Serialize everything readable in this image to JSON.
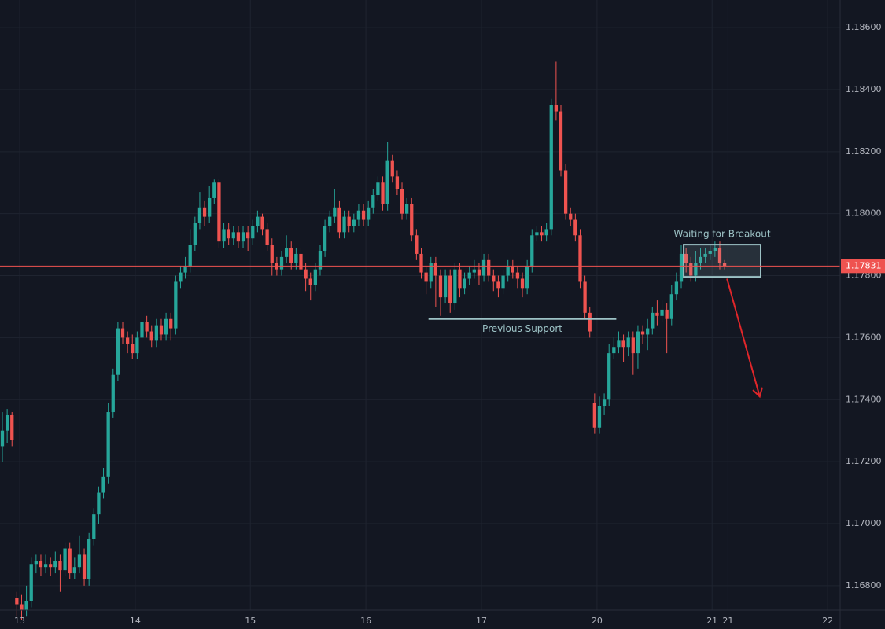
{
  "chart_data": {
    "type": "candlestick",
    "up_color": "#26a69a",
    "down_color": "#ef5350",
    "grid": true,
    "xlim": [
      -0.49,
      174.0
    ],
    "xticks": [
      {
        "value": 3.6,
        "label": "13"
      },
      {
        "value": 27.6,
        "label": "14"
      },
      {
        "value": 51.5,
        "label": "15"
      },
      {
        "value": 75.5,
        "label": "16"
      },
      {
        "value": 99.5,
        "label": "17"
      },
      {
        "value": 123.5,
        "label": "20"
      },
      {
        "value": 147.4,
        "label": "21"
      },
      {
        "value": 150.7,
        "label": "21"
      },
      {
        "value": 171.4,
        "label": "22"
      }
    ],
    "ylim": [
      1.16721,
      1.18689
    ],
    "yticks": [
      {
        "value": 1.168,
        "label": "1.16800"
      },
      {
        "value": 1.17,
        "label": "1.17000"
      },
      {
        "value": 1.172,
        "label": "1.17200"
      },
      {
        "value": 1.174,
        "label": "1.17400"
      },
      {
        "value": 1.176,
        "label": "1.17600"
      },
      {
        "value": 1.178,
        "label": "1.17800"
      },
      {
        "value": 1.18,
        "label": "1.18000"
      },
      {
        "value": 1.182,
        "label": "1.18200"
      },
      {
        "value": 1.184,
        "label": "1.18400"
      },
      {
        "value": 1.186,
        "label": "1.18600"
      }
    ],
    "price_line": {
      "value": 1.17831,
      "label": "1.17831",
      "color": "#ef5350"
    },
    "support": {
      "label": "Previous Support",
      "value": 1.1766,
      "x": [
        88.5,
        127.5
      ],
      "color": "#9dc3c6"
    },
    "box": {
      "label": "Waiting for Breakout",
      "x": [
        141.5,
        157.5
      ],
      "y": [
        1.17796,
        1.179
      ],
      "color": "#9dc3c6"
    },
    "arrow": {
      "x": [
        150.5,
        157.3
      ],
      "y": [
        1.1779,
        1.1741
      ],
      "color": "#e0262a"
    },
    "candles": [
      [
        1.1725,
        1.1736,
        1.172,
        1.173
      ],
      [
        1.173,
        1.1737,
        1.1726,
        1.1735
      ],
      [
        1.1735,
        1.1736,
        1.1725,
        1.1727
      ],
      [
        1.1676,
        1.1678,
        1.167,
        1.1674
      ],
      [
        1.1674,
        1.1677,
        1.1669,
        1.1672
      ],
      [
        1.1672,
        1.168,
        1.167,
        1.1675
      ],
      [
        1.1675,
        1.1689,
        1.1673,
        1.1687
      ],
      [
        1.1687,
        1.169,
        1.1684,
        1.1688
      ],
      [
        1.1688,
        1.169,
        1.1683,
        1.1686
      ],
      [
        1.1686,
        1.169,
        1.1684,
        1.1687
      ],
      [
        1.1687,
        1.1689,
        1.1683,
        1.1686
      ],
      [
        1.1686,
        1.1691,
        1.1684,
        1.1688
      ],
      [
        1.1688,
        1.169,
        1.1678,
        1.1685
      ],
      [
        1.1685,
        1.1694,
        1.1683,
        1.1692
      ],
      [
        1.1692,
        1.1694,
        1.1682,
        1.1684
      ],
      [
        1.1684,
        1.1689,
        1.1682,
        1.1686
      ],
      [
        1.1686,
        1.1696,
        1.1684,
        1.169
      ],
      [
        1.169,
        1.1692,
        1.168,
        1.1682
      ],
      [
        1.1682,
        1.1697,
        1.168,
        1.1695
      ],
      [
        1.1695,
        1.1705,
        1.1693,
        1.1703
      ],
      [
        1.1703,
        1.1712,
        1.17,
        1.171
      ],
      [
        1.171,
        1.1718,
        1.1708,
        1.1715
      ],
      [
        1.1715,
        1.1739,
        1.1713,
        1.1736
      ],
      [
        1.1736,
        1.175,
        1.1734,
        1.1748
      ],
      [
        1.1748,
        1.1765,
        1.1746,
        1.1763
      ],
      [
        1.1763,
        1.1765,
        1.1758,
        1.176
      ],
      [
        1.176,
        1.1762,
        1.1755,
        1.1758
      ],
      [
        1.1758,
        1.1761,
        1.1753,
        1.1755
      ],
      [
        1.1755,
        1.1762,
        1.1753,
        1.176
      ],
      [
        1.176,
        1.1767,
        1.1758,
        1.1765
      ],
      [
        1.1765,
        1.1767,
        1.176,
        1.1762
      ],
      [
        1.1762,
        1.1764,
        1.1757,
        1.1759
      ],
      [
        1.1759,
        1.1766,
        1.1757,
        1.1764
      ],
      [
        1.1764,
        1.1766,
        1.1759,
        1.1761
      ],
      [
        1.1761,
        1.1768,
        1.1759,
        1.1766
      ],
      [
        1.1766,
        1.1768,
        1.1759,
        1.1763
      ],
      [
        1.1763,
        1.178,
        1.1761,
        1.1778
      ],
      [
        1.1778,
        1.1783,
        1.1776,
        1.1781
      ],
      [
        1.1781,
        1.1786,
        1.1779,
        1.1783
      ],
      [
        1.1783,
        1.1795,
        1.1781,
        1.179
      ],
      [
        1.179,
        1.1799,
        1.1788,
        1.1797
      ],
      [
        1.1797,
        1.1807,
        1.1795,
        1.1802
      ],
      [
        1.1802,
        1.1804,
        1.1796,
        1.1799
      ],
      [
        1.1799,
        1.1809,
        1.1797,
        1.1805
      ],
      [
        1.1805,
        1.1811,
        1.1803,
        1.181
      ],
      [
        1.181,
        1.1811,
        1.1789,
        1.1791
      ],
      [
        1.1791,
        1.1797,
        1.1789,
        1.1795
      ],
      [
        1.1795,
        1.1797,
        1.179,
        1.1792
      ],
      [
        1.1792,
        1.1796,
        1.179,
        1.1794
      ],
      [
        1.1794,
        1.1796,
        1.1789,
        1.1791
      ],
      [
        1.1791,
        1.1796,
        1.1789,
        1.1794
      ],
      [
        1.1794,
        1.1796,
        1.1788,
        1.1792
      ],
      [
        1.1792,
        1.1798,
        1.179,
        1.1796
      ],
      [
        1.1796,
        1.1801,
        1.1794,
        1.1799
      ],
      [
        1.1799,
        1.18,
        1.1793,
        1.1795
      ],
      [
        1.1795,
        1.1797,
        1.1788,
        1.179
      ],
      [
        1.179,
        1.1792,
        1.178,
        1.1784
      ],
      [
        1.1784,
        1.1786,
        1.178,
        1.1782
      ],
      [
        1.1782,
        1.1788,
        1.178,
        1.1786
      ],
      [
        1.1786,
        1.1793,
        1.1784,
        1.1789
      ],
      [
        1.1789,
        1.1791,
        1.1782,
        1.1784
      ],
      [
        1.1784,
        1.1789,
        1.1782,
        1.1787
      ],
      [
        1.1787,
        1.1789,
        1.1779,
        1.1782
      ],
      [
        1.1782,
        1.1784,
        1.1775,
        1.1779
      ],
      [
        1.1779,
        1.1781,
        1.1772,
        1.1777
      ],
      [
        1.1777,
        1.1784,
        1.1775,
        1.1782
      ],
      [
        1.1782,
        1.179,
        1.178,
        1.1788
      ],
      [
        1.1788,
        1.1798,
        1.1786,
        1.1796
      ],
      [
        1.1796,
        1.1801,
        1.1794,
        1.1799
      ],
      [
        1.1799,
        1.1808,
        1.1797,
        1.1802
      ],
      [
        1.1802,
        1.1804,
        1.1792,
        1.1794
      ],
      [
        1.1794,
        1.1801,
        1.1792,
        1.1799
      ],
      [
        1.1799,
        1.1801,
        1.1794,
        1.1796
      ],
      [
        1.1796,
        1.18,
        1.1794,
        1.1798
      ],
      [
        1.1798,
        1.1803,
        1.1796,
        1.1801
      ],
      [
        1.1801,
        1.1803,
        1.1796,
        1.1798
      ],
      [
        1.1798,
        1.1804,
        1.1796,
        1.1802
      ],
      [
        1.1802,
        1.1808,
        1.18,
        1.1806
      ],
      [
        1.1806,
        1.1812,
        1.1804,
        1.181
      ],
      [
        1.181,
        1.1812,
        1.1801,
        1.1803
      ],
      [
        1.1803,
        1.1823,
        1.1801,
        1.1817
      ],
      [
        1.1817,
        1.1819,
        1.181,
        1.1812
      ],
      [
        1.1812,
        1.1814,
        1.1806,
        1.1808
      ],
      [
        1.1808,
        1.181,
        1.1798,
        1.18
      ],
      [
        1.18,
        1.1805,
        1.1798,
        1.1803
      ],
      [
        1.1803,
        1.1805,
        1.1791,
        1.1793
      ],
      [
        1.1793,
        1.1795,
        1.1785,
        1.1787
      ],
      [
        1.1787,
        1.1789,
        1.1779,
        1.1781
      ],
      [
        1.1781,
        1.1783,
        1.1774,
        1.1778
      ],
      [
        1.1778,
        1.1786,
        1.1776,
        1.1784
      ],
      [
        1.1784,
        1.1786,
        1.177,
        1.178
      ],
      [
        1.178,
        1.1782,
        1.1767,
        1.1773
      ],
      [
        1.1773,
        1.1782,
        1.1771,
        1.178
      ],
      [
        1.178,
        1.1782,
        1.1768,
        1.1771
      ],
      [
        1.1771,
        1.1784,
        1.1769,
        1.1782
      ],
      [
        1.1782,
        1.1784,
        1.1773,
        1.1776
      ],
      [
        1.1776,
        1.1781,
        1.1774,
        1.1779
      ],
      [
        1.1779,
        1.1783,
        1.1777,
        1.1781
      ],
      [
        1.1781,
        1.1785,
        1.1779,
        1.1782
      ],
      [
        1.1782,
        1.1784,
        1.1777,
        1.178
      ],
      [
        1.178,
        1.1787,
        1.1778,
        1.1785
      ],
      [
        1.1785,
        1.1787,
        1.1778,
        1.178
      ],
      [
        1.178,
        1.1782,
        1.1775,
        1.1778
      ],
      [
        1.1778,
        1.178,
        1.1773,
        1.1776
      ],
      [
        1.1776,
        1.1782,
        1.1774,
        1.178
      ],
      [
        1.178,
        1.1785,
        1.1778,
        1.1783
      ],
      [
        1.1783,
        1.1785,
        1.1779,
        1.1781
      ],
      [
        1.1781,
        1.1783,
        1.1776,
        1.1779
      ],
      [
        1.1779,
        1.1781,
        1.1773,
        1.1776
      ],
      [
        1.1776,
        1.1785,
        1.1774,
        1.1783
      ],
      [
        1.1783,
        1.1795,
        1.1781,
        1.1793
      ],
      [
        1.1793,
        1.1796,
        1.1791,
        1.1794
      ],
      [
        1.1794,
        1.1796,
        1.1791,
        1.1793
      ],
      [
        1.1793,
        1.1797,
        1.1791,
        1.1795
      ],
      [
        1.1795,
        1.1837,
        1.1793,
        1.1835
      ],
      [
        1.1835,
        1.1849,
        1.183,
        1.1833
      ],
      [
        1.1833,
        1.1835,
        1.1812,
        1.1814
      ],
      [
        1.1814,
        1.1816,
        1.1798,
        1.18
      ],
      [
        1.18,
        1.1802,
        1.1796,
        1.1798
      ],
      [
        1.1798,
        1.18,
        1.1791,
        1.1793
      ],
      [
        1.1793,
        1.1795,
        1.1776,
        1.1778
      ],
      [
        1.1778,
        1.178,
        1.1766,
        1.1768
      ],
      [
        1.1768,
        1.177,
        1.176,
        1.1762
      ],
      [
        1.1739,
        1.1742,
        1.1729,
        1.1731
      ],
      [
        1.1731,
        1.1741,
        1.1729,
        1.1738
      ],
      [
        1.1738,
        1.1742,
        1.1735,
        1.174
      ],
      [
        1.174,
        1.1758,
        1.1738,
        1.1755
      ],
      [
        1.1755,
        1.176,
        1.1753,
        1.1757
      ],
      [
        1.1757,
        1.1762,
        1.1755,
        1.1759
      ],
      [
        1.1759,
        1.1761,
        1.1752,
        1.1757
      ],
      [
        1.1757,
        1.1762,
        1.1754,
        1.176
      ],
      [
        1.176,
        1.1762,
        1.1748,
        1.1755
      ],
      [
        1.1755,
        1.1764,
        1.175,
        1.1762
      ],
      [
        1.1762,
        1.1764,
        1.1758,
        1.1761
      ],
      [
        1.1761,
        1.1766,
        1.1756,
        1.1763
      ],
      [
        1.1763,
        1.177,
        1.1761,
        1.1768
      ],
      [
        1.1768,
        1.1772,
        1.1764,
        1.1767
      ],
      [
        1.1767,
        1.1772,
        1.1765,
        1.1769
      ],
      [
        1.1769,
        1.1771,
        1.1755,
        1.1766
      ],
      [
        1.1766,
        1.1777,
        1.1764,
        1.1774
      ],
      [
        1.1774,
        1.1781,
        1.1772,
        1.1778
      ],
      [
        1.1778,
        1.179,
        1.1776,
        1.1787
      ],
      [
        1.1787,
        1.1789,
        1.1781,
        1.1784
      ],
      [
        1.1784,
        1.1786,
        1.1778,
        1.178
      ],
      [
        1.178,
        1.1788,
        1.1778,
        1.1784
      ],
      [
        1.1784,
        1.1789,
        1.1782,
        1.1786
      ],
      [
        1.1786,
        1.1789,
        1.1784,
        1.1787
      ],
      [
        1.1787,
        1.179,
        1.1785,
        1.1788
      ],
      [
        1.1788,
        1.1791,
        1.1786,
        1.1789
      ],
      [
        1.1789,
        1.1791,
        1.1782,
        1.1784
      ],
      [
        1.1784,
        1.1785,
        1.1782,
        1.17831
      ]
    ]
  }
}
